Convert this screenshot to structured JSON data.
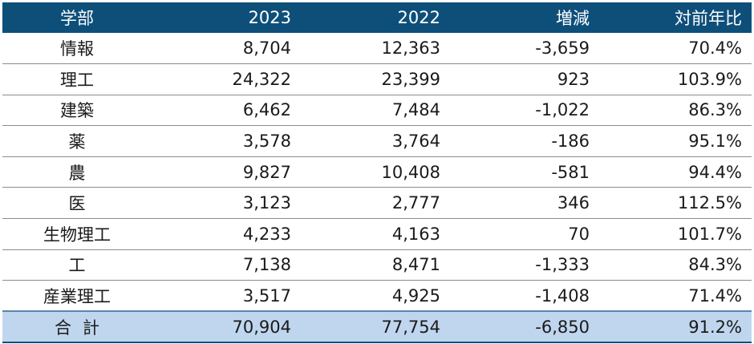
{
  "table": {
    "headers": [
      "学部",
      "2023",
      "2022",
      "増減",
      "対前年比"
    ],
    "rows": [
      [
        "情報",
        "8,704",
        "12,363",
        "-3,659",
        "70.4%"
      ],
      [
        "理工",
        "24,322",
        "23,399",
        "923",
        "103.9%"
      ],
      [
        "建築",
        "6,462",
        "7,484",
        "-1,022",
        "86.3%"
      ],
      [
        "薬",
        "3,578",
        "3,764",
        "-186",
        "95.1%"
      ],
      [
        "農",
        "9,827",
        "10,408",
        "-581",
        "94.4%"
      ],
      [
        "医",
        "3,123",
        "2,777",
        "346",
        "112.5%"
      ],
      [
        "生物理工",
        "4,233",
        "4,163",
        "70",
        "101.7%"
      ],
      [
        "工",
        "7,138",
        "8,471",
        "-1,333",
        "84.3%"
      ],
      [
        "産業理工",
        "3,517",
        "4,925",
        "-1,408",
        "71.4%"
      ]
    ],
    "total": [
      "合計",
      "70,904",
      "77,754",
      "-6,850",
      "91.2%"
    ]
  },
  "colors": {
    "header_bg": "#0e4f7a",
    "header_text": "#ffffff",
    "total_bg": "#bfd6ee"
  }
}
